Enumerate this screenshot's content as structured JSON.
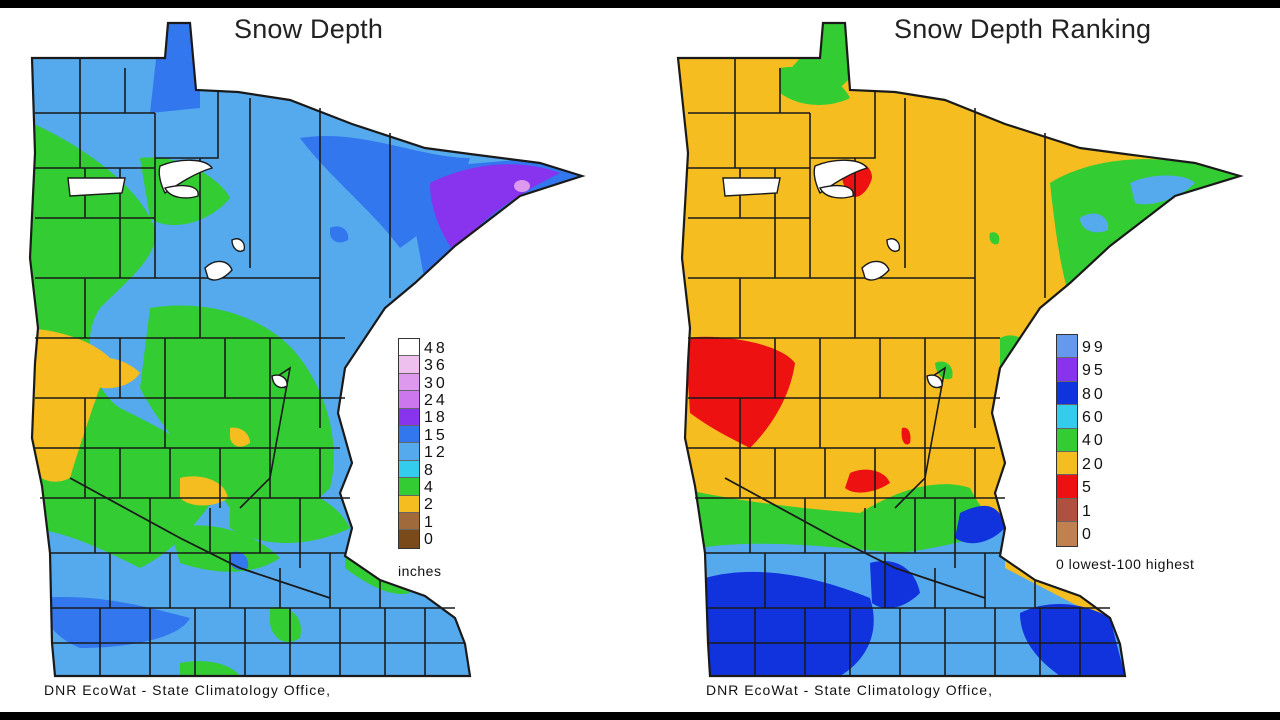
{
  "maps": [
    {
      "title": "Snow Depth",
      "legend": {
        "unit_label": "inches",
        "ticks": [
          "48",
          "36",
          "30",
          "24",
          "18",
          "15",
          "12",
          "8",
          "4",
          "2",
          "1",
          "0"
        ],
        "colors": [
          "#ffffff",
          "#eec0ee",
          "#dd99ee",
          "#cc77ee",
          "#8833ee",
          "#3377ee",
          "#55aaee",
          "#33ccee",
          "#33cc33",
          "#f5bd1f",
          "#a06a3a",
          "#7a4a1a"
        ]
      },
      "credit": "DNR EcoWat - State Climatology Office,"
    },
    {
      "title": "Snow Depth Ranking",
      "legend": {
        "unit_label": "0 lowest-100 highest",
        "ticks": [
          "99",
          "95",
          "80",
          "60",
          "40",
          "20",
          "5",
          "1",
          "0"
        ],
        "colors": [
          "#6699ee",
          "#8833ee",
          "#1133dd",
          "#33ccee",
          "#33cc33",
          "#f5bd1f",
          "#ee1111",
          "#b05040",
          "#c08050"
        ]
      },
      "credit": "DNR EcoWat - State Climatology Office,"
    }
  ],
  "palette": {
    "border": "#1a1a1a",
    "lake": "#ffffff"
  }
}
